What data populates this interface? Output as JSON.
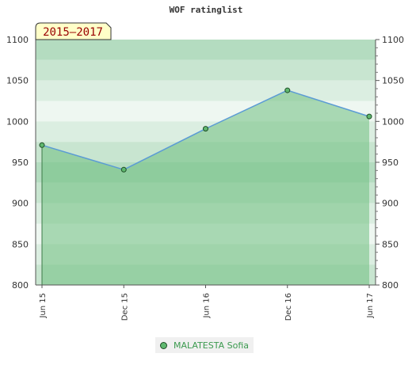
{
  "chart_data": {
    "type": "area",
    "title": "WOF ratinglist",
    "period_label": "2015–2017",
    "categories": [
      "Jun 15",
      "Dec 15",
      "Jun 16",
      "Dec 16",
      "Jun 17"
    ],
    "series": [
      {
        "name": "MALATESTA Sofia",
        "values": [
          971,
          941,
          991,
          1038,
          1006
        ]
      }
    ],
    "ylim": [
      800,
      1100
    ],
    "yticks": [
      800,
      850,
      900,
      950,
      1000,
      1050,
      1100
    ],
    "ylabel": "",
    "xlabel": "",
    "grid": "banded",
    "legend_position": "bottom-center",
    "colors": {
      "line": "#5b9bd5",
      "marker_fill": "#5fb86f",
      "marker_stroke": "#1e4d25",
      "area": "#6fbf7f",
      "bands": [
        "#b4dcc0",
        "#c8e5d0",
        "#dbeee1",
        "#eef7f1"
      ],
      "label_box_fill": "#ffffc8",
      "label_text": "#990000"
    }
  }
}
